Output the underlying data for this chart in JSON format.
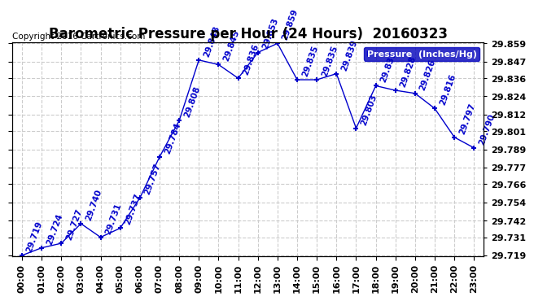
{
  "title": "Barometric Pressure per Hour (24 Hours)  20160323",
  "copyright": "Copyright 2016 Cartronics.com",
  "legend_label": "Pressure  (Inches/Hg)",
  "hours": [
    "00:00",
    "01:00",
    "02:00",
    "03:00",
    "04:00",
    "05:00",
    "06:00",
    "07:00",
    "08:00",
    "09:00",
    "10:00",
    "11:00",
    "12:00",
    "13:00",
    "14:00",
    "15:00",
    "16:00",
    "17:00",
    "18:00",
    "19:00",
    "20:00",
    "21:00",
    "22:00",
    "23:00"
  ],
  "pressure": [
    29.719,
    29.724,
    29.727,
    29.74,
    29.731,
    29.737,
    29.757,
    29.784,
    29.808,
    29.848,
    29.845,
    29.836,
    29.853,
    29.859,
    29.835,
    29.835,
    29.839,
    29.803,
    29.831,
    29.828,
    29.826,
    29.816,
    29.797,
    29.79
  ],
  "line_color": "#0000cc",
  "marker_color": "#0000cc",
  "grid_color": "#cccccc",
  "bg_color": "#ffffff",
  "title_color": "#000000",
  "ymin": 29.719,
  "ymax": 29.859,
  "yticks": [
    29.719,
    29.731,
    29.742,
    29.754,
    29.766,
    29.777,
    29.789,
    29.801,
    29.812,
    29.824,
    29.836,
    29.847,
    29.859
  ],
  "title_fontsize": 12,
  "annotation_fontsize": 7.5,
  "tick_fontsize": 8,
  "copyright_fontsize": 7.5
}
